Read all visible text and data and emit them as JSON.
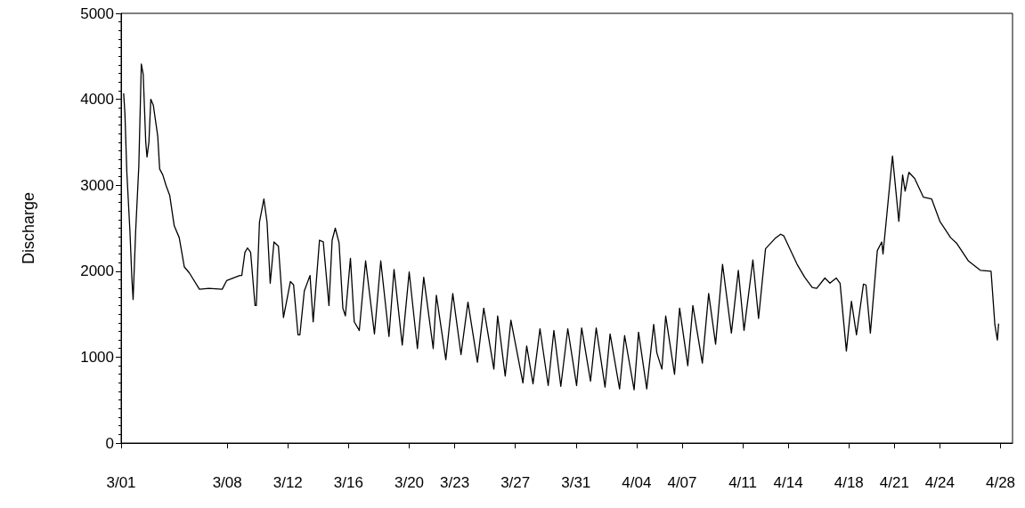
{
  "chart_data": {
    "type": "line",
    "ylabel": "Discharge",
    "grid": false,
    "marker": "none",
    "line_style": "solid",
    "xlim": [
      "--03-01",
      "--04-28T19:00"
    ],
    "xticks": [
      {
        "value": "--03-01",
        "label": "3/01"
      },
      {
        "value": "--03-08",
        "label": "3/08"
      },
      {
        "value": "--03-12",
        "label": "3/12"
      },
      {
        "value": "--03-16",
        "label": "3/16"
      },
      {
        "value": "--03-20",
        "label": "3/20"
      },
      {
        "value": "--03-23",
        "label": "3/23"
      },
      {
        "value": "--03-27",
        "label": "3/27"
      },
      {
        "value": "--03-31",
        "label": "3/31"
      },
      {
        "value": "--04-04",
        "label": "4/04"
      },
      {
        "value": "--04-07",
        "label": "4/07"
      },
      {
        "value": "--04-11",
        "label": "4/11"
      },
      {
        "value": "--04-14",
        "label": "4/14"
      },
      {
        "value": "--04-18",
        "label": "4/18"
      },
      {
        "value": "--04-21",
        "label": "4/21"
      },
      {
        "value": "--04-24",
        "label": "4/24"
      },
      {
        "value": "--04-28",
        "label": "4/28"
      }
    ],
    "ylim": [
      0,
      5000
    ],
    "yticks": [
      0,
      1000,
      2000,
      3000,
      4000,
      5000
    ],
    "series": [
      {
        "color": "#000000",
        "x": [
          "--03-01T04:00",
          "--03-01T06:00",
          "--03-01T09:00",
          "--03-01T14:00",
          "--03-01T17:00",
          "--03-01T19:00",
          "--03-01T23:00",
          "--03-02T04:00",
          "--03-02T08:00",
          "--03-02T11:00",
          "--03-02T15:00",
          "--03-02T17:00",
          "--03-02T20:00",
          "--03-02T23:00",
          "--03-03T03:00",
          "--03-03T10:00",
          "--03-03T13:00",
          "--03-03T18:00",
          "--03-03T23:00",
          "--03-04T05:00",
          "--03-04T12:00",
          "--03-04T20:00",
          "--03-05T04:00",
          "--03-05T12:00",
          "--03-06T04:00",
          "--03-06T19:00",
          "--03-07T16:00",
          "--03-07T23:00",
          "--03-08T20:00",
          "--03-08T23:00",
          "--03-09T04:00",
          "--03-09T08:00",
          "--03-09T13:00",
          "--03-09T20:00",
          "--03-09T22:00",
          "--03-10T03:00",
          "--03-10T10:00",
          "--03-10T15:00",
          "--03-10T20:00",
          "--03-11T02:00",
          "--03-11T09:00",
          "--03-11T17:00",
          "--03-12T04:00",
          "--03-12T09:00",
          "--03-12T16:00",
          "--03-12T19:00",
          "--03-13T02:00",
          "--03-13T11:00",
          "--03-13T16:00",
          "--03-14T02:00",
          "--03-14T08:00",
          "--03-14T17:00",
          "--03-14T22:00",
          "--03-15T03:00",
          "--03-15T09:00",
          "--03-15T15:00",
          "--03-15T19:00",
          "--03-16T03:00",
          "--03-16T09:00",
          "--03-16T17:00",
          "--03-17T03:00",
          "--03-17T17:00",
          "--03-18T03:00",
          "--03-18T16:00",
          "--03-19T00:00",
          "--03-19T13:00",
          "--03-20T00:00",
          "--03-20T13:00",
          "--03-20T23:00",
          "--03-21T14:00",
          "--03-21T19:00",
          "--03-22T10:00",
          "--03-22T21:00",
          "--03-23T10:00",
          "--03-23T21:00",
          "--03-24T12:00",
          "--03-24T22:00",
          "--03-25T14:00",
          "--03-25T20:00",
          "--03-26T08:00",
          "--03-26T17:00",
          "--03-27T12:00",
          "--03-27T18:00",
          "--03-28T04:00",
          "--03-28T15:00",
          "--03-29T04:00",
          "--03-29T13:00",
          "--03-30T00:00",
          "--03-30T11:00",
          "--03-31T01:00",
          "--03-31T09:00",
          "--03-31T23:00",
          "--04-01T08:00",
          "--04-01T22:00",
          "--04-02T06:00",
          "--04-02T21:00",
          "--04-03T05:00",
          "--04-03T20:00",
          "--04-04T03:00",
          "--04-04T16:00",
          "--04-05T03:00",
          "--04-05T08:00",
          "--04-05T16:00",
          "--04-05T22:00",
          "--04-06T12:00",
          "--04-06T20:00",
          "--04-07T09:00",
          "--04-07T17:00",
          "--04-08T08:00",
          "--04-08T18:00",
          "--04-09T05:00",
          "--04-09T16:00",
          "--04-10T06:00",
          "--04-10T17:00",
          "--04-11T02:00",
          "--04-11T16:00",
          "--04-12T01:00",
          "--04-12T12:00",
          "--04-13T03:00",
          "--04-13T12:00",
          "--04-13T17:00",
          "--04-14T14:00",
          "--04-15T02:00",
          "--04-15T14:00",
          "--04-15T21:00",
          "--04-16T10:00",
          "--04-16T18:00",
          "--04-17T04:00",
          "--04-17T10:00",
          "--04-17T20:00",
          "--04-18T04:00",
          "--04-18T12:00",
          "--04-18T23:00",
          "--04-19T03:00",
          "--04-19T10:00",
          "--04-19T21:00",
          "--04-20T04:00",
          "--04-20T06:00",
          "--04-20T21:00",
          "--04-21T07:00",
          "--04-21T13:00",
          "--04-21T17:00",
          "--04-21T23:00",
          "--04-22T08:00",
          "--04-22T22:00",
          "--04-23T11:00",
          "--04-24T00:00",
          "--04-24T17:00",
          "--04-25T02:00",
          "--04-25T21:00",
          "--04-26T16:00",
          "--04-27T09:00",
          "--04-27T15:00",
          "--04-27T19:00",
          "--04-27T21:00"
        ],
        "values": [
          4070,
          3840,
          3160,
          2460,
          1920,
          1670,
          2460,
          3220,
          4410,
          4290,
          3500,
          3330,
          3500,
          4000,
          3930,
          3570,
          3190,
          3120,
          3000,
          2880,
          2530,
          2390,
          2050,
          1980,
          1790,
          1800,
          1790,
          1890,
          1950,
          1950,
          2220,
          2270,
          2220,
          1600,
          1600,
          2570,
          2840,
          2570,
          1860,
          2340,
          2290,
          1460,
          1880,
          1840,
          1260,
          1260,
          1770,
          1950,
          1410,
          2360,
          2340,
          1600,
          2360,
          2500,
          2330,
          1570,
          1480,
          2150,
          1410,
          1310,
          2120,
          1270,
          2120,
          1240,
          2020,
          1140,
          1990,
          1100,
          1930,
          1100,
          1720,
          970,
          1740,
          1030,
          1640,
          940,
          1570,
          860,
          1480,
          780,
          1430,
          700,
          1130,
          690,
          1330,
          670,
          1310,
          660,
          1330,
          670,
          1340,
          720,
          1340,
          650,
          1270,
          630,
          1250,
          620,
          1290,
          630,
          1380,
          1050,
          860,
          1480,
          800,
          1570,
          900,
          1600,
          930,
          1740,
          1150,
          2080,
          1280,
          2010,
          1310,
          2130,
          1450,
          2260,
          2380,
          2430,
          2410,
          2080,
          1930,
          1810,
          1800,
          1920,
          1860,
          1920,
          1860,
          1070,
          1650,
          1260,
          1850,
          1840,
          1280,
          2240,
          2340,
          2200,
          3340,
          2580,
          3120,
          2930,
          3150,
          3080,
          2860,
          2840,
          2580,
          2390,
          2330,
          2120,
          2010,
          2000,
          1380,
          1200,
          1390
        ]
      }
    ]
  }
}
